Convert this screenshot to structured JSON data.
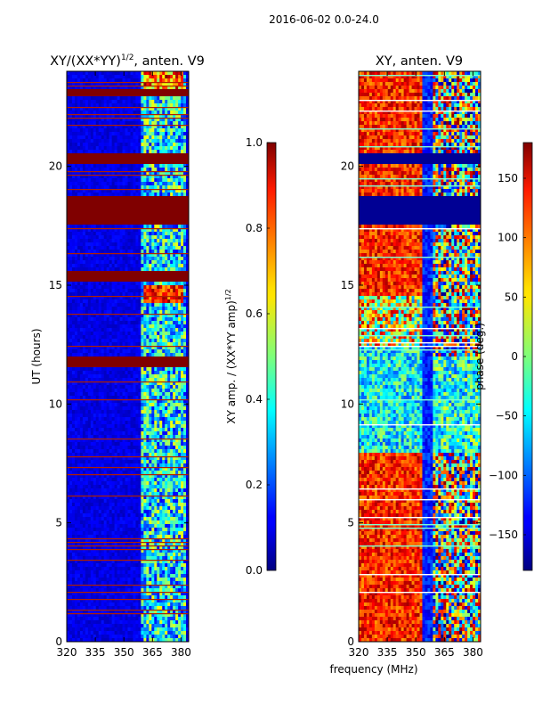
{
  "chart_data": {
    "suptitle": "2016-06-02 0.0-24.0",
    "shared_xlabel": "frequency (MHz)",
    "panels": [
      {
        "id": "left",
        "type": "heatmap",
        "title_main": "XY/(XX*YY)",
        "title_sup": "1/2",
        "title_tail": ", anten. V9",
        "ylabel": "UT (hours)",
        "xlim": [
          320,
          384
        ],
        "ylim": [
          0,
          24
        ],
        "xticks": [
          "320",
          "335",
          "350",
          "365",
          "380"
        ],
        "yticks": [
          "0",
          "5",
          "10",
          "15",
          "20"
        ],
        "colorbar": {
          "label_main": "XY amp. / (XX*YY amp)",
          "label_sup": "1/2",
          "range": [
            0.0,
            1.0
          ],
          "ticks": [
            "0.0",
            "0.2",
            "0.4",
            "0.6",
            "0.8",
            "1.0"
          ]
        },
        "flagged_bands_ut": [
          [
            11.5,
            12.0
          ],
          [
            15.2,
            15.6
          ],
          [
            17.6,
            18.8
          ],
          [
            20.1,
            20.5
          ],
          [
            23.0,
            23.3
          ]
        ]
      },
      {
        "id": "right",
        "type": "heatmap",
        "title": "XY, anten. V9",
        "xlim": [
          320,
          384
        ],
        "ylim": [
          0,
          24
        ],
        "xticks": [
          "320",
          "335",
          "350",
          "365",
          "380"
        ],
        "yticks": [
          "0",
          "5",
          "10",
          "15",
          "20"
        ],
        "colorbar": {
          "label": "phase (deg.)",
          "range": [
            -180,
            180
          ],
          "ticks": [
            "−150",
            "−100",
            "−50",
            "0",
            "50",
            "100",
            "150"
          ]
        },
        "flagged_bands_ut": [
          [
            17.6,
            18.8
          ],
          [
            20.1,
            20.5
          ]
        ]
      }
    ]
  }
}
